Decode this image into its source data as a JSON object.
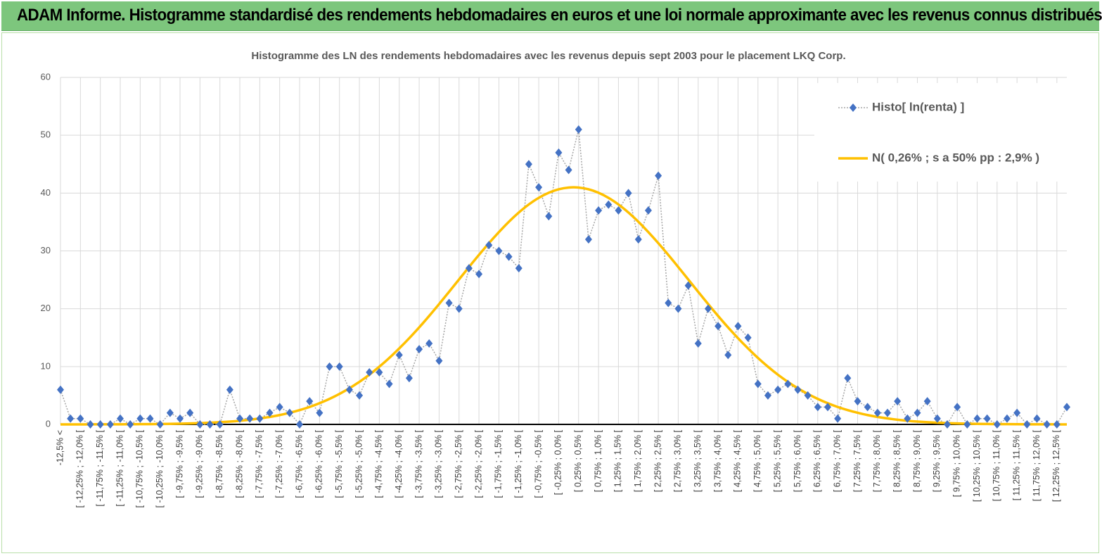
{
  "header": {
    "title": "ADAM Informe. Histogramme standardisé des rendements hebdomadaires en euros et une loi normale approximante avec les revenus connus distribués"
  },
  "chart_data": {
    "type": "line",
    "title": "Histogramme  des LN des rendements hebdomadaires avec les revenus depuis sept 2003 pour le placement LKQ Corp.",
    "categories": [
      "-12,5% <",
      null,
      "[ -12,25% ; -12,0% [",
      null,
      "[ -11,75% ; -11,5% [",
      null,
      "[ -11,25% ; -11,0% [",
      null,
      "[ -10,75% ; -10,5% [",
      null,
      "[ -10,25% ; -10,0% [",
      null,
      "[ -9,75% ; -9,5% [",
      null,
      "[ -9,25% ; -9,0% [",
      null,
      "[ -8,75% ; -8,5% [",
      null,
      "[ -8,25% ; -8,0% [",
      null,
      "[ -7,75% ; -7,5% [",
      null,
      "[ -7,25% ; -7,0% [",
      null,
      "[ -6,75% ; -6,5% [",
      null,
      "[ -6,25% ; -6,0% [",
      null,
      "[ -5,75% ; -5,5% [",
      null,
      "[ -5,25% ; -5,0% [",
      null,
      "[ -4,75% ; -4,5% [",
      null,
      "[ -4,25% ; -4,0% [",
      null,
      "[ -3,75% ; -3,5% [",
      null,
      "[ -3,25% ; -3,0% [",
      null,
      "[ -2,75% ; -2,5% [",
      null,
      "[ -2,25% ; -2,0% [",
      null,
      "[ -1,75% ; -1,5% [",
      null,
      "[ -1,25% ; -1,0% [",
      null,
      "[ -0,75% ; -0,5% [",
      null,
      "[ -0,25% ; 0,0% [",
      null,
      "[ 0,25% ; 0,5% [",
      null,
      "[ 0,75% ; 1,0% [",
      null,
      "[ 1,25% ; 1,5% [",
      null,
      "[ 1,75% ; 2,0% [",
      null,
      "[ 2,25% ; 2,5% [",
      null,
      "[ 2,75% ; 3,0% [",
      null,
      "[ 3,25% ; 3,5% [",
      null,
      "[ 3,75% ; 4,0% [",
      null,
      "[ 4,25% ; 4,5% [",
      null,
      "[ 4,75% ; 5,0% [",
      null,
      "[ 5,25% ; 5,5% [",
      null,
      "[ 5,75% ; 6,0% [",
      null,
      "[ 6,25% ; 6,5% [",
      null,
      "[ 6,75% ; 7,0% [",
      null,
      "[ 7,25% ; 7,5% [",
      null,
      "[ 7,75% ; 8,0% [",
      null,
      "[ 8,25% ; 8,5% [",
      null,
      "[ 8,75% ; 9,0% [",
      null,
      "[ 9,25% ; 9,5% [",
      null,
      "[ 9,75% ; 10,0% [",
      null,
      "[ 10,25% ; 10,5% [",
      null,
      "[ 10,75% ; 11,0% [",
      null,
      "[ 11,25% ; 11,5% [",
      null,
      "[ 11,75% ; 12,0% [",
      null,
      "[ 12,25% ; 12,5% [",
      null
    ],
    "series": [
      {
        "name": "Histo[ ln(renta) ]",
        "color": "#4472c4",
        "values": [
          6,
          1,
          1,
          0,
          0,
          0,
          1,
          0,
          1,
          1,
          0,
          2,
          1,
          2,
          0,
          0,
          0,
          6,
          1,
          1,
          1,
          2,
          3,
          2,
          0,
          4,
          2,
          10,
          10,
          6,
          5,
          9,
          9,
          7,
          12,
          8,
          13,
          14,
          11,
          21,
          20,
          27,
          26,
          31,
          30,
          29,
          27,
          45,
          41,
          36,
          47,
          44,
          51,
          32,
          37,
          38,
          37,
          40,
          32,
          37,
          43,
          21,
          20,
          24,
          14,
          20,
          17,
          12,
          17,
          15,
          7,
          5,
          6,
          7,
          6,
          5,
          3,
          3,
          1,
          8,
          4,
          3,
          2,
          2,
          4,
          1,
          2,
          4,
          1,
          0,
          3,
          0,
          1,
          1,
          0,
          1,
          2,
          0,
          1,
          0,
          0,
          3
        ]
      },
      {
        "name": "N( 0,26% ; s a 50% pp : 2,9% )",
        "color": "#ffc000",
        "values": [
          0,
          0,
          0,
          0.01,
          0.01,
          0.01,
          0.02,
          0.03,
          0.04,
          0.05,
          0.07,
          0.09,
          0.12,
          0.17,
          0.22,
          0.29,
          0.38,
          0.49,
          0.63,
          0.81,
          1.03,
          1.29,
          1.61,
          2.01,
          2.47,
          3.01,
          3.66,
          4.41,
          5.27,
          6.25,
          7.36,
          8.6,
          9.98,
          11.49,
          13.14,
          14.9,
          16.77,
          18.75,
          20.81,
          22.93,
          25.07,
          27.21,
          29.31,
          31.34,
          33.25,
          35.04,
          36.64,
          38.03,
          39.18,
          40.06,
          40.66,
          40.96,
          40.96,
          40.66,
          40.06,
          39.18,
          38.03,
          36.64,
          35.04,
          33.25,
          31.34,
          29.31,
          27.21,
          25.07,
          22.93,
          20.81,
          18.75,
          16.77,
          14.9,
          13.14,
          11.49,
          9.98,
          8.6,
          7.36,
          6.25,
          5.27,
          4.41,
          3.66,
          3.01,
          2.47,
          2.01,
          1.61,
          1.29,
          1.03,
          0.81,
          0.63,
          0.49,
          0.38,
          0.29,
          0.22,
          0.17,
          0.12,
          0.09,
          0.07,
          0.05,
          0.04,
          0.03,
          0.02,
          0.01,
          0.01,
          0.01,
          0
        ]
      }
    ],
    "ylim": [
      0,
      60
    ],
    "yticks": [
      0,
      10,
      20,
      30,
      40,
      50,
      60
    ],
    "grid": true,
    "legend_position": "top-right"
  }
}
